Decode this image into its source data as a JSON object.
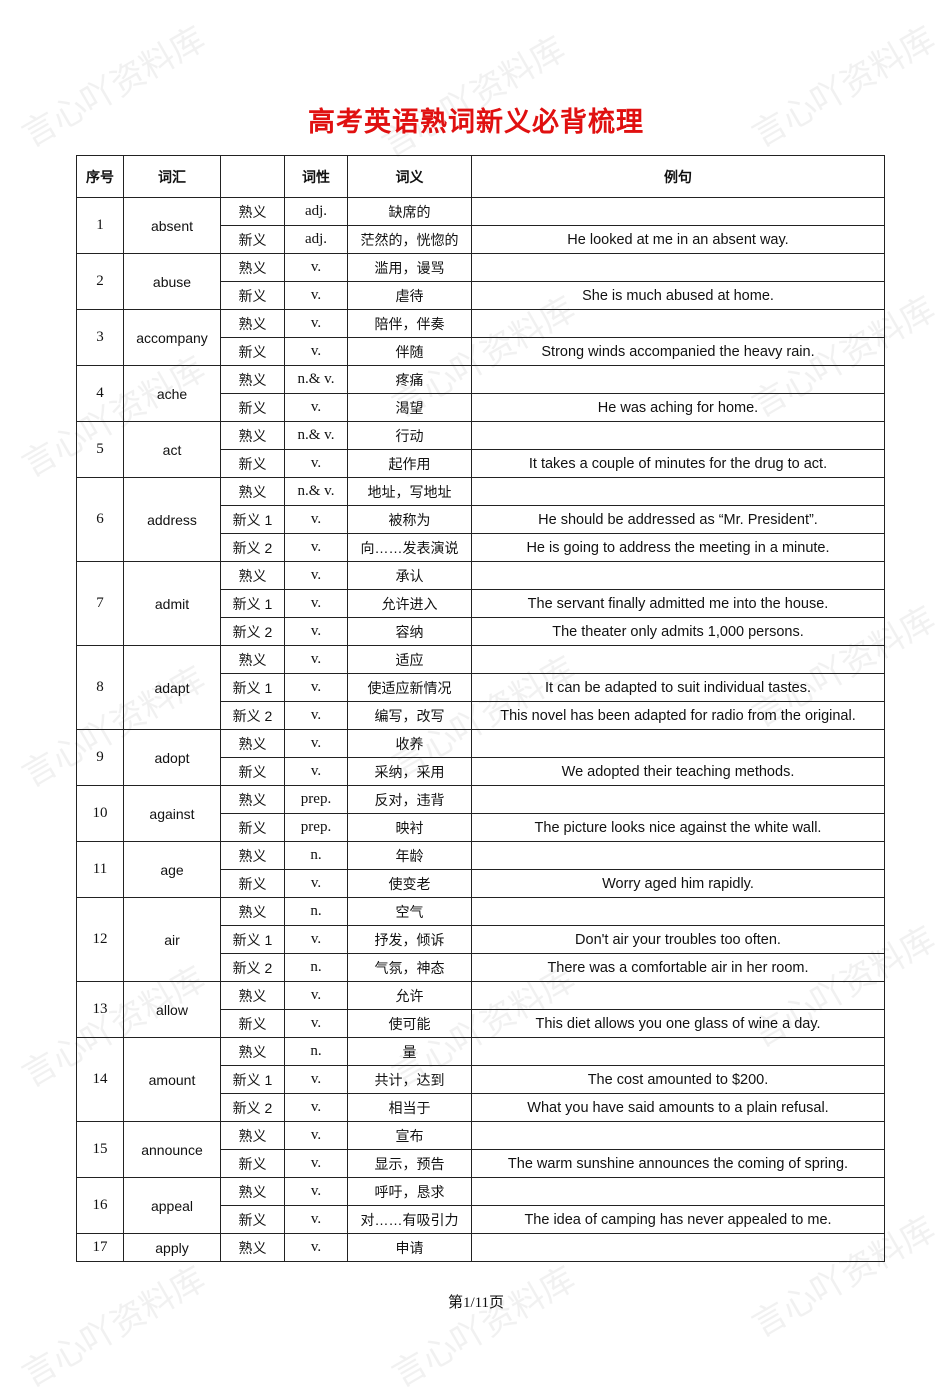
{
  "watermark": "言心吖资料库",
  "title": "高考英语熟词新义必背梳理",
  "headers": [
    "序号",
    "词汇",
    "",
    "词性",
    "词义",
    "例句"
  ],
  "entries": [
    {
      "no": "1",
      "word": "absent",
      "senses": [
        {
          "type": "熟义",
          "pos": "adj.",
          "meaning": "缺席的",
          "example": ""
        },
        {
          "type": "新义",
          "pos": "adj.",
          "meaning": "茫然的，恍惚的",
          "example": "He looked at me in an absent way."
        }
      ]
    },
    {
      "no": "2",
      "word": "abuse",
      "senses": [
        {
          "type": "熟义",
          "pos": "v.",
          "meaning": "滥用，谩骂",
          "example": ""
        },
        {
          "type": "新义",
          "pos": "v.",
          "meaning": "虐待",
          "example": "She is much abused at home."
        }
      ]
    },
    {
      "no": "3",
      "word": "accompany",
      "senses": [
        {
          "type": "熟义",
          "pos": "v.",
          "meaning": "陪伴，伴奏",
          "example": ""
        },
        {
          "type": "新义",
          "pos": "v.",
          "meaning": "伴随",
          "example": "Strong winds accompanied the heavy rain."
        }
      ]
    },
    {
      "no": "4",
      "word": "ache",
      "senses": [
        {
          "type": "熟义",
          "pos": "n.& v.",
          "meaning": "疼痛",
          "example": ""
        },
        {
          "type": "新义",
          "pos": "v.",
          "meaning": "渴望",
          "example": "He was aching for home."
        }
      ]
    },
    {
      "no": "5",
      "word": "act",
      "senses": [
        {
          "type": "熟义",
          "pos": "n.& v.",
          "meaning": "行动",
          "example": ""
        },
        {
          "type": "新义",
          "pos": "v.",
          "meaning": "起作用",
          "example": "It takes a couple of minutes for the drug to act."
        }
      ]
    },
    {
      "no": "6",
      "word": "address",
      "senses": [
        {
          "type": "熟义",
          "pos": "n.& v.",
          "meaning": "地址，写地址",
          "example": ""
        },
        {
          "type": "新义 1",
          "pos": "v.",
          "meaning": "被称为",
          "example": "He should be addressed as “Mr. President”."
        },
        {
          "type": "新义 2",
          "pos": "v.",
          "meaning": "向……发表演说",
          "example": "He is going to address the meeting in a minute."
        }
      ]
    },
    {
      "no": "7",
      "word": "admit",
      "senses": [
        {
          "type": "熟义",
          "pos": "v.",
          "meaning": "承认",
          "example": ""
        },
        {
          "type": "新义 1",
          "pos": "v.",
          "meaning": "允许进入",
          "example": "The servant finally admitted me into the house."
        },
        {
          "type": "新义 2",
          "pos": "v.",
          "meaning": "容纳",
          "example": "The theater only admits 1,000 persons."
        }
      ]
    },
    {
      "no": "8",
      "word": "adapt",
      "senses": [
        {
          "type": "熟义",
          "pos": "v.",
          "meaning": "适应",
          "example": ""
        },
        {
          "type": "新义 1",
          "pos": "v.",
          "meaning": "使适应新情况",
          "example": "It can be adapted to suit individual tastes."
        },
        {
          "type": "新义 2",
          "pos": "v.",
          "meaning": "编写，改写",
          "example": "This novel has been adapted for radio from the original."
        }
      ]
    },
    {
      "no": "9",
      "word": "adopt",
      "senses": [
        {
          "type": "熟义",
          "pos": "v.",
          "meaning": "收养",
          "example": ""
        },
        {
          "type": "新义",
          "pos": "v.",
          "meaning": "采纳，采用",
          "example": "We adopted their teaching methods."
        }
      ]
    },
    {
      "no": "10",
      "word": "against",
      "senses": [
        {
          "type": "熟义",
          "pos": "prep.",
          "meaning": "反对，违背",
          "example": ""
        },
        {
          "type": "新义",
          "pos": "prep.",
          "meaning": "映衬",
          "example": "The picture looks nice against the white wall."
        }
      ]
    },
    {
      "no": "11",
      "word": "age",
      "senses": [
        {
          "type": "熟义",
          "pos": "n.",
          "meaning": "年龄",
          "example": ""
        },
        {
          "type": "新义",
          "pos": "v.",
          "meaning": "使变老",
          "example": "Worry aged him rapidly."
        }
      ]
    },
    {
      "no": "12",
      "word": "air",
      "senses": [
        {
          "type": "熟义",
          "pos": "n.",
          "meaning": "空气",
          "example": ""
        },
        {
          "type": "新义 1",
          "pos": "v.",
          "meaning": "抒发，倾诉",
          "example": "Don't air your troubles too often."
        },
        {
          "type": "新义 2",
          "pos": "n.",
          "meaning": "气氛，神态",
          "example": "There was a comfortable air in her room."
        }
      ]
    },
    {
      "no": "13",
      "word": "allow",
      "senses": [
        {
          "type": "熟义",
          "pos": "v.",
          "meaning": "允许",
          "example": ""
        },
        {
          "type": "新义",
          "pos": "v.",
          "meaning": "使可能",
          "example": "This diet allows you one glass of wine a day."
        }
      ]
    },
    {
      "no": "14",
      "word": "amount",
      "senses": [
        {
          "type": "熟义",
          "pos": "n.",
          "meaning": "量",
          "example": ""
        },
        {
          "type": "新义 1",
          "pos": "v.",
          "meaning": "共计，达到",
          "example": "The cost amounted to $200."
        },
        {
          "type": "新义 2",
          "pos": "v.",
          "meaning": "相当于",
          "example": "What you have said amounts to a plain refusal."
        }
      ]
    },
    {
      "no": "15",
      "word": "announce",
      "senses": [
        {
          "type": "熟义",
          "pos": "v.",
          "meaning": "宣布",
          "example": ""
        },
        {
          "type": "新义",
          "pos": "v.",
          "meaning": "显示，预告",
          "example": "The warm sunshine announces the coming of spring."
        }
      ]
    },
    {
      "no": "16",
      "word": "appeal",
      "senses": [
        {
          "type": "熟义",
          "pos": "v.",
          "meaning": "呼吁，恳求",
          "example": ""
        },
        {
          "type": "新义",
          "pos": "v.",
          "meaning": "对……有吸引力",
          "example": "The idea of camping has never appealed to me."
        }
      ]
    },
    {
      "no": "17",
      "word": "apply",
      "senses": [
        {
          "type": "熟义",
          "pos": "v.",
          "meaning": "申请",
          "example": ""
        }
      ]
    }
  ],
  "footer": "第1/11页"
}
